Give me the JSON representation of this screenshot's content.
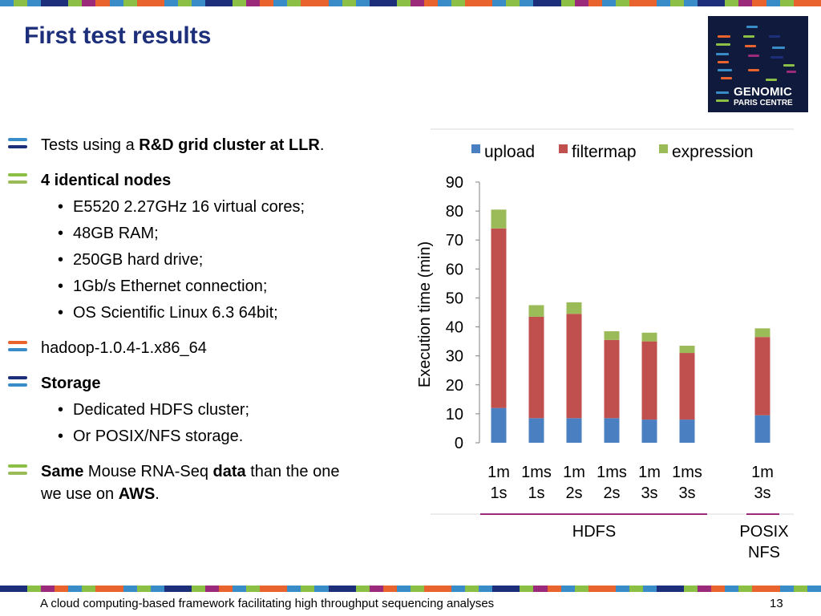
{
  "slide": {
    "title": "First test results",
    "footer": "A cloud computing-based framework facilitating high throughput sequencing analyses",
    "page_number": "13"
  },
  "logo": {
    "line1": "GENOMIC",
    "line2": "PARIS CENTRE"
  },
  "bullets": {
    "b1": {
      "pre": "Tests using a ",
      "bold": "R&D grid cluster at LLR",
      "post": "."
    },
    "b2": {
      "bold": "4 identical nodes"
    },
    "b2_subs": [
      "E5520 2.27GHz 16 virtual cores;",
      "48GB RAM;",
      "250GB hard drive;",
      "1Gb/s Ethernet connection;",
      "OS Scientific Linux 6.3 64bit;"
    ],
    "b3": "hadoop-1.0.4-1.x86_64",
    "b4": {
      "bold": "Storage"
    },
    "b4_subs": [
      "Dedicated HDFS cluster;",
      "Or POSIX/NFS storage."
    ],
    "b5": {
      "bold1": "Same",
      "mid": " Mouse RNA-Seq ",
      "bold2": "data",
      "post": " than the one",
      "line2_pre": "we use on ",
      "line2_bold": "AWS",
      "line2_post": "."
    }
  },
  "chart_data": {
    "type": "bar",
    "stacked": true,
    "ylabel": "Execution time (min)",
    "ylim": [
      0,
      90
    ],
    "yticks": [
      "0",
      "10",
      "20",
      "30",
      "40",
      "50",
      "60",
      "70",
      "80",
      "90"
    ],
    "categories": [
      [
        "1m",
        "1s"
      ],
      [
        "1ms",
        "1s"
      ],
      [
        "1m",
        "2s"
      ],
      [
        "1ms",
        "2s"
      ],
      [
        "1m",
        "3s"
      ],
      [
        "1ms",
        "3s"
      ],
      [
        "1m",
        "3s"
      ]
    ],
    "series": [
      {
        "name": "upload",
        "color": "#4a7fc1",
        "values": [
          12,
          8.5,
          8.5,
          8.5,
          8,
          8,
          9.5
        ]
      },
      {
        "name": "filtermap",
        "color": "#c0504d",
        "values": [
          62,
          35,
          36,
          27,
          27,
          23,
          27
        ]
      },
      {
        "name": "expression",
        "color": "#9bbb59",
        "values": [
          6.5,
          4,
          4,
          3,
          3,
          2.5,
          3
        ]
      }
    ],
    "groups": [
      {
        "label": "HDFS"
      },
      {
        "label": [
          "POSIX",
          "NFS"
        ]
      }
    ],
    "legend": "top",
    "grid": false
  },
  "colors": {
    "title": "#1d2f7a",
    "blue": "#3a8cc8",
    "green": "#8cbf45",
    "orange": "#e8632e",
    "navy": "#1d2f7a",
    "purple": "#9c2a7a"
  }
}
